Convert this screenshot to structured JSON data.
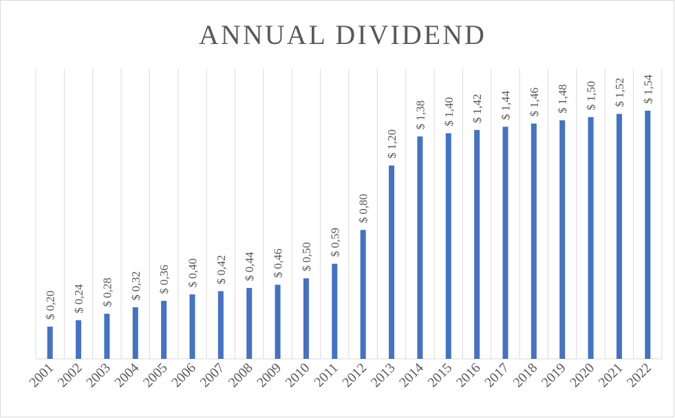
{
  "chart_data": {
    "type": "bar",
    "title": "ANNUAL DIVIDEND",
    "categories": [
      "2001",
      "2002",
      "2003",
      "2004",
      "2005",
      "2006",
      "2007",
      "2008",
      "2009",
      "2010",
      "2011",
      "2012",
      "2013",
      "2014",
      "2015",
      "2016",
      "2017",
      "2018",
      "2019",
      "2020",
      "2021",
      "2022"
    ],
    "values": [
      0.2,
      0.24,
      0.28,
      0.32,
      0.36,
      0.4,
      0.42,
      0.44,
      0.46,
      0.5,
      0.59,
      0.8,
      1.2,
      1.38,
      1.4,
      1.42,
      1.44,
      1.46,
      1.48,
      1.5,
      1.52,
      1.54
    ],
    "value_labels": [
      "$ 0,20",
      "$ 0,24",
      "$ 0,28",
      "$ 0,32",
      "$ 0,36",
      "$ 0,40",
      "$ 0,42",
      "$ 0,44",
      "$ 0,46",
      "$ 0,50",
      "$ 0,59",
      "$ 0,80",
      "$ 1,20",
      "$ 1,38",
      "$ 1,40",
      "$ 1,42",
      "$ 1,44",
      "$ 1,46",
      "$ 1,48",
      "$ 1,50",
      "$ 1,52",
      "$ 1,54"
    ],
    "color": "#4472c4",
    "ylim": [
      0,
      1.8
    ],
    "grid": true
  }
}
